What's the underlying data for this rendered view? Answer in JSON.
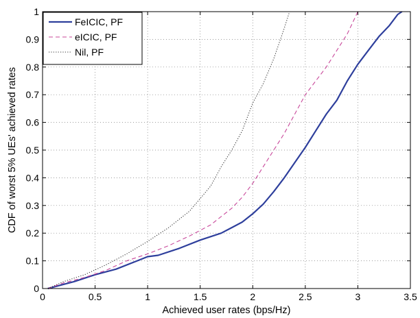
{
  "chart_data": {
    "type": "line",
    "xlabel": "Achieved user rates (bps/Hz)",
    "ylabel": "CDF of worst 5% UEs' achieved rates",
    "xlim": [
      0,
      3.5
    ],
    "ylim": [
      0,
      1
    ],
    "x_ticks": [
      0,
      0.5,
      1,
      1.5,
      2,
      2.5,
      3,
      3.5
    ],
    "x_tick_labels": [
      "0",
      "0.5",
      "1",
      "1.5",
      "2",
      "2.5",
      "3",
      "3.5"
    ],
    "y_ticks": [
      0,
      0.1,
      0.2,
      0.3,
      0.4,
      0.5,
      0.6,
      0.7,
      0.8,
      0.9,
      1
    ],
    "y_tick_labels": [
      "0",
      "0.1",
      "0.2",
      "0.3",
      "0.4",
      "0.5",
      "0.6",
      "0.7",
      "0.8",
      "0.9",
      "1"
    ],
    "grid": true,
    "legend_position": "top-left",
    "series": [
      {
        "name": "FeICIC, PF",
        "color": "#2e3f9c",
        "style": "solid",
        "points": [
          [
            0.05,
            0
          ],
          [
            0.2,
            0.015
          ],
          [
            0.3,
            0.025
          ],
          [
            0.5,
            0.05
          ],
          [
            0.7,
            0.07
          ],
          [
            0.9,
            0.1
          ],
          [
            1.0,
            0.115
          ],
          [
            1.1,
            0.12
          ],
          [
            1.3,
            0.145
          ],
          [
            1.5,
            0.175
          ],
          [
            1.7,
            0.2
          ],
          [
            1.8,
            0.22
          ],
          [
            1.9,
            0.24
          ],
          [
            2.0,
            0.27
          ],
          [
            2.1,
            0.305
          ],
          [
            2.2,
            0.35
          ],
          [
            2.3,
            0.4
          ],
          [
            2.4,
            0.455
          ],
          [
            2.5,
            0.51
          ],
          [
            2.6,
            0.57
          ],
          [
            2.7,
            0.63
          ],
          [
            2.8,
            0.68
          ],
          [
            2.9,
            0.75
          ],
          [
            3.0,
            0.81
          ],
          [
            3.1,
            0.86
          ],
          [
            3.2,
            0.91
          ],
          [
            3.3,
            0.95
          ],
          [
            3.38,
            0.99
          ],
          [
            3.42,
            1.0
          ]
        ]
      },
      {
        "name": "eICIC, PF",
        "color": "#c8479a",
        "style": "dashed",
        "points": [
          [
            0.05,
            0
          ],
          [
            0.2,
            0.02
          ],
          [
            0.4,
            0.04
          ],
          [
            0.6,
            0.065
          ],
          [
            0.8,
            0.1
          ],
          [
            1.0,
            0.125
          ],
          [
            1.2,
            0.155
          ],
          [
            1.4,
            0.19
          ],
          [
            1.6,
            0.23
          ],
          [
            1.8,
            0.29
          ],
          [
            1.9,
            0.33
          ],
          [
            2.0,
            0.38
          ],
          [
            2.1,
            0.44
          ],
          [
            2.2,
            0.5
          ],
          [
            2.3,
            0.56
          ],
          [
            2.4,
            0.63
          ],
          [
            2.5,
            0.7
          ],
          [
            2.6,
            0.75
          ],
          [
            2.7,
            0.8
          ],
          [
            2.8,
            0.86
          ],
          [
            2.9,
            0.92
          ],
          [
            2.95,
            0.96
          ],
          [
            3.0,
            1.0
          ]
        ]
      },
      {
        "name": "Nil, PF",
        "color": "#333333",
        "style": "dotted",
        "points": [
          [
            0.05,
            0
          ],
          [
            0.2,
            0.025
          ],
          [
            0.4,
            0.05
          ],
          [
            0.6,
            0.085
          ],
          [
            0.8,
            0.125
          ],
          [
            1.0,
            0.17
          ],
          [
            1.2,
            0.22
          ],
          [
            1.4,
            0.28
          ],
          [
            1.6,
            0.37
          ],
          [
            1.7,
            0.44
          ],
          [
            1.8,
            0.5
          ],
          [
            1.9,
            0.57
          ],
          [
            2.0,
            0.67
          ],
          [
            2.1,
            0.74
          ],
          [
            2.2,
            0.83
          ],
          [
            2.3,
            0.94
          ],
          [
            2.35,
            1.0
          ]
        ]
      }
    ]
  }
}
